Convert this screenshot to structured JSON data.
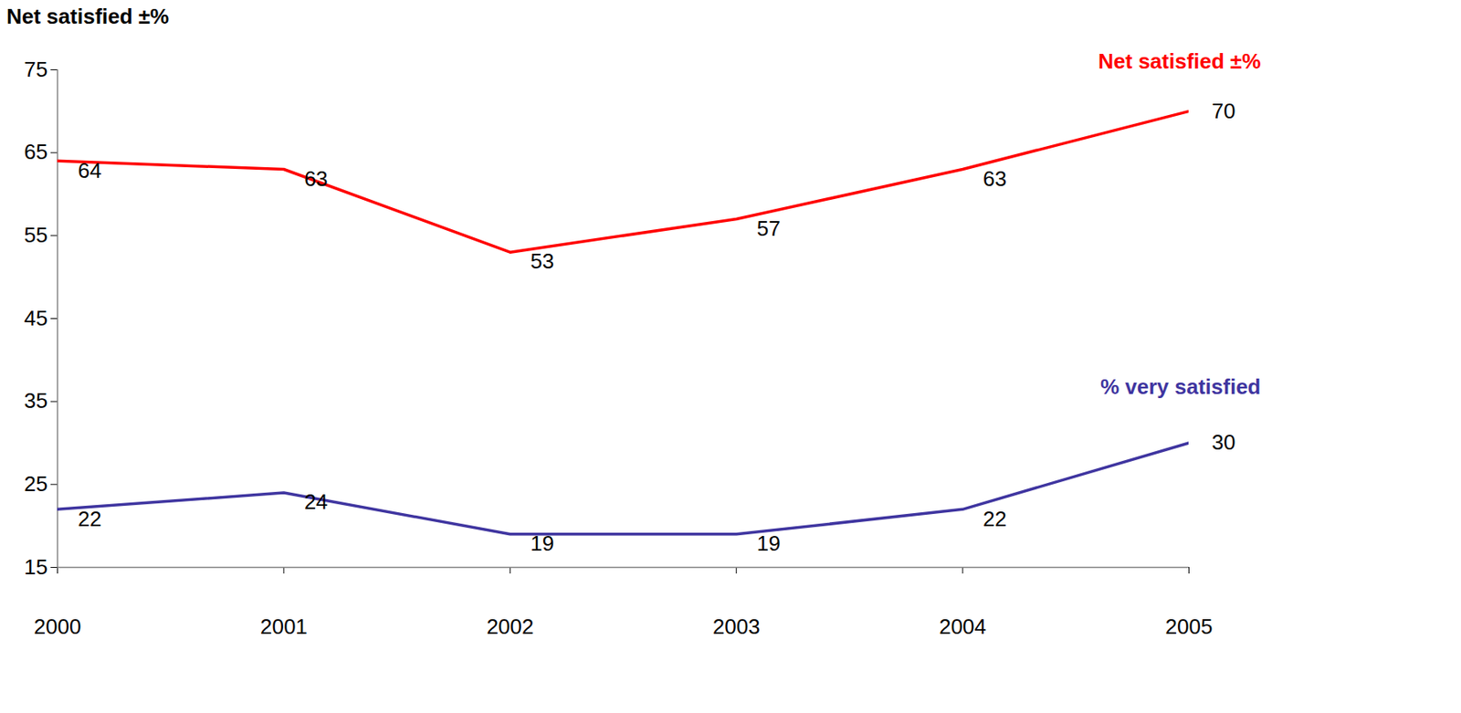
{
  "chart_data": {
    "type": "line",
    "ylabel": "Net satisfied ±%",
    "x": [
      2000,
      2001,
      2002,
      2003,
      2004,
      2005
    ],
    "series": [
      {
        "name": "Net satisfied ±%",
        "color": "#ff0000",
        "values": [
          64,
          63,
          53,
          57,
          63,
          70
        ]
      },
      {
        "name": "% very satisfied",
        "color": "#3f35a0",
        "values": [
          22,
          24,
          19,
          19,
          22,
          30
        ]
      }
    ],
    "xlim": [
      2000,
      2005
    ],
    "xticks": [
      2000,
      2001,
      2002,
      2003,
      2004,
      2005
    ],
    "ylim": [
      15,
      75
    ],
    "yticks": [
      15,
      25,
      35,
      45,
      55,
      65,
      75
    ],
    "data_labels": true,
    "grid": false
  }
}
